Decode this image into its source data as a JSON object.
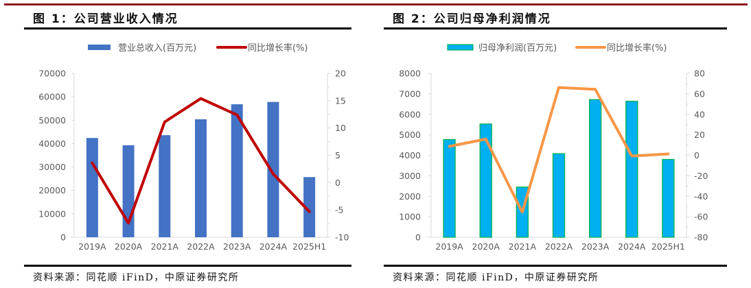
{
  "figures": [
    {
      "title": "图 1：公司营业收入情况",
      "source": "资料来源：同花顺 iFinD，中原证券研究所",
      "legend": [
        {
          "label": "营业总收入(百万元)",
          "type": "bar",
          "color": "#4472c4"
        },
        {
          "label": "同比增长率(%)",
          "type": "line",
          "color": "#c00000"
        }
      ]
    },
    {
      "title": "图 2：公司归母净利润情况",
      "source": "资料来源：同花顺 iFinD，中原证券研究所",
      "legend": [
        {
          "label": "归母净利润(百万元)",
          "type": "bar",
          "color": "#00b0f0",
          "border": "#00b050"
        },
        {
          "label": "同比增长率(%)",
          "type": "line",
          "color": "#f79646"
        }
      ]
    }
  ],
  "chart_data": [
    {
      "type": "bar",
      "title": "图 1：公司营业收入情况",
      "categories": [
        "2019A",
        "2020A",
        "2021A",
        "2022A",
        "2023A",
        "2024A",
        "2025H1"
      ],
      "series": [
        {
          "name": "营业总收入(百万元)",
          "type": "bar",
          "axis": "left",
          "color": "#4472c4",
          "values": [
            42400,
            39300,
            43600,
            50400,
            56800,
            57800,
            25700
          ]
        },
        {
          "name": "同比增长率(%)",
          "type": "line",
          "axis": "right",
          "color": "#c00000",
          "values": [
            3.6,
            -7.4,
            11.1,
            15.4,
            12.4,
            1.6,
            -5.3
          ]
        }
      ],
      "ylim_left": [
        0,
        70000
      ],
      "yticks_left": [
        0,
        10000,
        20000,
        30000,
        40000,
        50000,
        60000,
        70000
      ],
      "ylim_right": [
        -10,
        20
      ],
      "yticks_right": [
        -10,
        -5,
        0,
        5,
        10,
        15,
        20
      ],
      "xlabel": "",
      "ylabel": "",
      "grid": false,
      "legend_position": "top"
    },
    {
      "type": "bar",
      "title": "图 2：公司归母净利润情况",
      "categories": [
        "2019A",
        "2020A",
        "2021A",
        "2022A",
        "2023A",
        "2024A",
        "2025H1"
      ],
      "series": [
        {
          "name": "归母净利润(百万元)",
          "type": "bar",
          "axis": "left",
          "color": "#00b0f0",
          "border": "#00b050",
          "values": [
            4770,
            5530,
            2450,
            4080,
            6720,
            6640,
            3800
          ]
        },
        {
          "name": "同比增长率(%)",
          "type": "line",
          "axis": "right",
          "color": "#f79646",
          "values": [
            8.7,
            15.8,
            -55.5,
            66.2,
            64.4,
            -0.7,
            1.3
          ]
        }
      ],
      "ylim_left": [
        0,
        8000
      ],
      "yticks_left": [
        0,
        1000,
        2000,
        3000,
        4000,
        5000,
        6000,
        7000,
        8000
      ],
      "ylim_right": [
        -80,
        80
      ],
      "yticks_right": [
        -80,
        -60,
        -40,
        -20,
        0,
        20,
        40,
        60,
        80
      ],
      "xlabel": "",
      "ylabel": "",
      "grid": false,
      "legend_position": "top"
    }
  ]
}
